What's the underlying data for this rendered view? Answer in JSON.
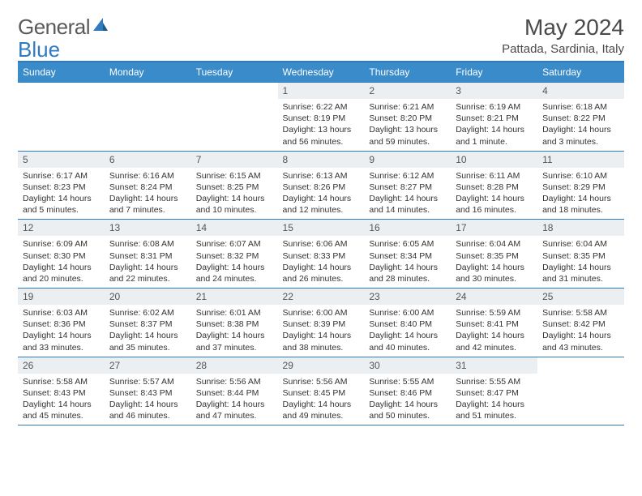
{
  "brand": {
    "part1": "General",
    "part2": "Blue"
  },
  "title": "May 2024",
  "location": "Pattada, Sardinia, Italy",
  "colors": {
    "header_bg": "#3a8bc9",
    "border": "#2e7bbf",
    "daynum_bg": "#eceff1",
    "text": "#333333"
  },
  "day_headers": [
    "Sunday",
    "Monday",
    "Tuesday",
    "Wednesday",
    "Thursday",
    "Friday",
    "Saturday"
  ],
  "weeks": [
    [
      null,
      null,
      null,
      {
        "n": "1",
        "sr": "Sunrise: 6:22 AM",
        "ss": "Sunset: 8:19 PM",
        "dl": "Daylight: 13 hours and 56 minutes."
      },
      {
        "n": "2",
        "sr": "Sunrise: 6:21 AM",
        "ss": "Sunset: 8:20 PM",
        "dl": "Daylight: 13 hours and 59 minutes."
      },
      {
        "n": "3",
        "sr": "Sunrise: 6:19 AM",
        "ss": "Sunset: 8:21 PM",
        "dl": "Daylight: 14 hours and 1 minute."
      },
      {
        "n": "4",
        "sr": "Sunrise: 6:18 AM",
        "ss": "Sunset: 8:22 PM",
        "dl": "Daylight: 14 hours and 3 minutes."
      }
    ],
    [
      {
        "n": "5",
        "sr": "Sunrise: 6:17 AM",
        "ss": "Sunset: 8:23 PM",
        "dl": "Daylight: 14 hours and 5 minutes."
      },
      {
        "n": "6",
        "sr": "Sunrise: 6:16 AM",
        "ss": "Sunset: 8:24 PM",
        "dl": "Daylight: 14 hours and 7 minutes."
      },
      {
        "n": "7",
        "sr": "Sunrise: 6:15 AM",
        "ss": "Sunset: 8:25 PM",
        "dl": "Daylight: 14 hours and 10 minutes."
      },
      {
        "n": "8",
        "sr": "Sunrise: 6:13 AM",
        "ss": "Sunset: 8:26 PM",
        "dl": "Daylight: 14 hours and 12 minutes."
      },
      {
        "n": "9",
        "sr": "Sunrise: 6:12 AM",
        "ss": "Sunset: 8:27 PM",
        "dl": "Daylight: 14 hours and 14 minutes."
      },
      {
        "n": "10",
        "sr": "Sunrise: 6:11 AM",
        "ss": "Sunset: 8:28 PM",
        "dl": "Daylight: 14 hours and 16 minutes."
      },
      {
        "n": "11",
        "sr": "Sunrise: 6:10 AM",
        "ss": "Sunset: 8:29 PM",
        "dl": "Daylight: 14 hours and 18 minutes."
      }
    ],
    [
      {
        "n": "12",
        "sr": "Sunrise: 6:09 AM",
        "ss": "Sunset: 8:30 PM",
        "dl": "Daylight: 14 hours and 20 minutes."
      },
      {
        "n": "13",
        "sr": "Sunrise: 6:08 AM",
        "ss": "Sunset: 8:31 PM",
        "dl": "Daylight: 14 hours and 22 minutes."
      },
      {
        "n": "14",
        "sr": "Sunrise: 6:07 AM",
        "ss": "Sunset: 8:32 PM",
        "dl": "Daylight: 14 hours and 24 minutes."
      },
      {
        "n": "15",
        "sr": "Sunrise: 6:06 AM",
        "ss": "Sunset: 8:33 PM",
        "dl": "Daylight: 14 hours and 26 minutes."
      },
      {
        "n": "16",
        "sr": "Sunrise: 6:05 AM",
        "ss": "Sunset: 8:34 PM",
        "dl": "Daylight: 14 hours and 28 minutes."
      },
      {
        "n": "17",
        "sr": "Sunrise: 6:04 AM",
        "ss": "Sunset: 8:35 PM",
        "dl": "Daylight: 14 hours and 30 minutes."
      },
      {
        "n": "18",
        "sr": "Sunrise: 6:04 AM",
        "ss": "Sunset: 8:35 PM",
        "dl": "Daylight: 14 hours and 31 minutes."
      }
    ],
    [
      {
        "n": "19",
        "sr": "Sunrise: 6:03 AM",
        "ss": "Sunset: 8:36 PM",
        "dl": "Daylight: 14 hours and 33 minutes."
      },
      {
        "n": "20",
        "sr": "Sunrise: 6:02 AM",
        "ss": "Sunset: 8:37 PM",
        "dl": "Daylight: 14 hours and 35 minutes."
      },
      {
        "n": "21",
        "sr": "Sunrise: 6:01 AM",
        "ss": "Sunset: 8:38 PM",
        "dl": "Daylight: 14 hours and 37 minutes."
      },
      {
        "n": "22",
        "sr": "Sunrise: 6:00 AM",
        "ss": "Sunset: 8:39 PM",
        "dl": "Daylight: 14 hours and 38 minutes."
      },
      {
        "n": "23",
        "sr": "Sunrise: 6:00 AM",
        "ss": "Sunset: 8:40 PM",
        "dl": "Daylight: 14 hours and 40 minutes."
      },
      {
        "n": "24",
        "sr": "Sunrise: 5:59 AM",
        "ss": "Sunset: 8:41 PM",
        "dl": "Daylight: 14 hours and 42 minutes."
      },
      {
        "n": "25",
        "sr": "Sunrise: 5:58 AM",
        "ss": "Sunset: 8:42 PM",
        "dl": "Daylight: 14 hours and 43 minutes."
      }
    ],
    [
      {
        "n": "26",
        "sr": "Sunrise: 5:58 AM",
        "ss": "Sunset: 8:43 PM",
        "dl": "Daylight: 14 hours and 45 minutes."
      },
      {
        "n": "27",
        "sr": "Sunrise: 5:57 AM",
        "ss": "Sunset: 8:43 PM",
        "dl": "Daylight: 14 hours and 46 minutes."
      },
      {
        "n": "28",
        "sr": "Sunrise: 5:56 AM",
        "ss": "Sunset: 8:44 PM",
        "dl": "Daylight: 14 hours and 47 minutes."
      },
      {
        "n": "29",
        "sr": "Sunrise: 5:56 AM",
        "ss": "Sunset: 8:45 PM",
        "dl": "Daylight: 14 hours and 49 minutes."
      },
      {
        "n": "30",
        "sr": "Sunrise: 5:55 AM",
        "ss": "Sunset: 8:46 PM",
        "dl": "Daylight: 14 hours and 50 minutes."
      },
      {
        "n": "31",
        "sr": "Sunrise: 5:55 AM",
        "ss": "Sunset: 8:47 PM",
        "dl": "Daylight: 14 hours and 51 minutes."
      },
      null
    ]
  ]
}
